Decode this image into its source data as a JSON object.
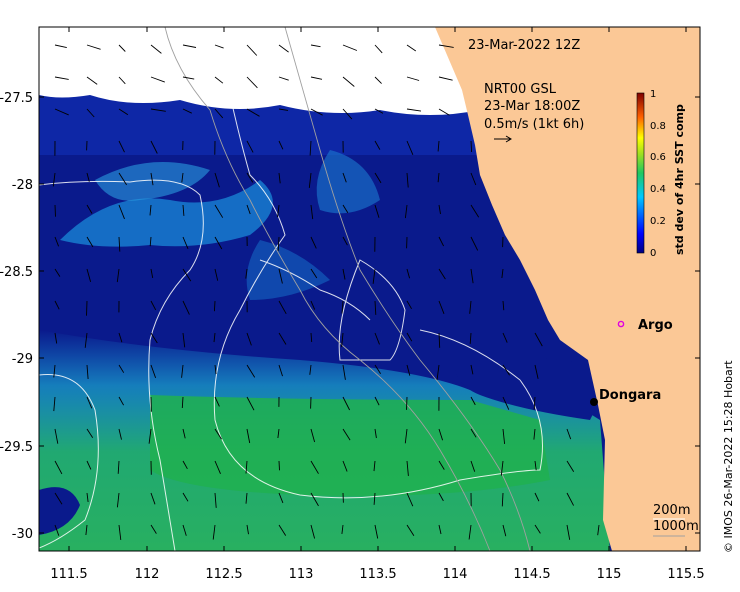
{
  "map": {
    "timestamp": "23-Mar-2022 12Z",
    "current_product": "NRT00 GSL",
    "current_time": "23-Mar 18:00Z",
    "scale_label": "0.5m/s (1kt 6h)",
    "x_ticks": [
      "111.5",
      "112",
      "112.5",
      "113",
      "113.5",
      "114",
      "114.5",
      "115",
      "115.5"
    ],
    "y_ticks": [
      "-27.5",
      "-28",
      "-28.5",
      "-29",
      "-29.5",
      "-30"
    ],
    "places": {
      "argo": "Argo",
      "dongara": "Dongara"
    },
    "isobaths": [
      "200m",
      "1000m"
    ],
    "credit": "© IMOS 26-Mar-2022 15:28 Hobart",
    "colors": {
      "land": "#fbc896",
      "cloud": "#ffffff",
      "argo_marker": "#e000e0",
      "deep_blue": "#0a1a8c"
    }
  },
  "colorbar": {
    "title": "std dev of 4hr SST comp",
    "ticks": [
      "0",
      "0.2",
      "0.4",
      "0.6",
      "0.8",
      "1"
    ]
  }
}
